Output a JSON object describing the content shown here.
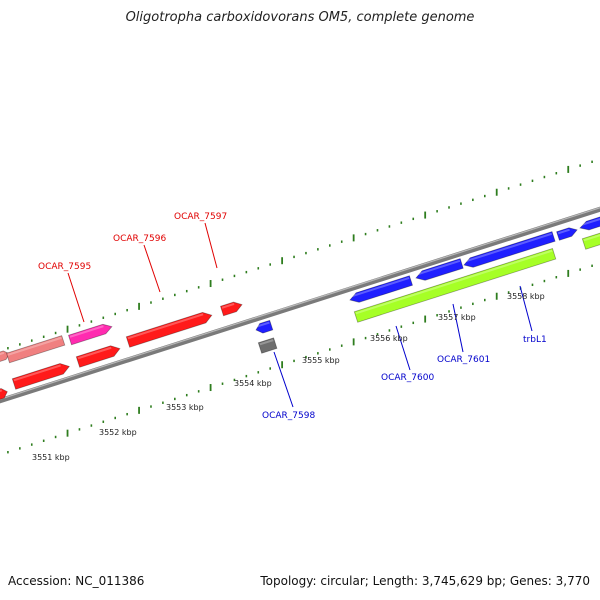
{
  "title": "Oligotropha carboxidovorans OM5, complete genome",
  "footer": {
    "accession": "Accession: NC_011386",
    "summary": "Topology: circular; Length: 3,745,629 bp; Genes: 3,770"
  },
  "colors": {
    "backbone": "#8a8a8a",
    "tick": "#2e7d1e",
    "red_gene": "#ff1a1a",
    "pink_gene": "#ff2bb0",
    "salmon_gene": "#f08080",
    "blue_gene": "#1f1fff",
    "green_gene": "#a6ff26",
    "gray_gene": "#6e6e6e",
    "red_label": "#e00000",
    "blue_label": "#0000cc"
  },
  "scale_labels": [
    {
      "id": "3551",
      "text": "3551 kbp"
    },
    {
      "id": "3552",
      "text": "3552 kbp"
    },
    {
      "id": "3553",
      "text": "3553 kbp"
    },
    {
      "id": "3554",
      "text": "3554 kbp"
    },
    {
      "id": "3555",
      "text": "3555 kbp"
    },
    {
      "id": "3556",
      "text": "3556 kbp"
    },
    {
      "id": "3557",
      "text": "3557 kbp"
    },
    {
      "id": "3558",
      "text": "3558 kbp"
    }
  ],
  "gene_labels": [
    {
      "id": "OCAR_7595",
      "text": "OCAR_7595",
      "color": "red"
    },
    {
      "id": "OCAR_7596",
      "text": "OCAR_7596",
      "color": "red"
    },
    {
      "id": "OCAR_7597",
      "text": "OCAR_7597",
      "color": "red"
    },
    {
      "id": "OCAR_7598",
      "text": "OCAR_7598",
      "color": "blue"
    },
    {
      "id": "OCAR_7600",
      "text": "OCAR_7600",
      "color": "blue"
    },
    {
      "id": "OCAR_7601",
      "text": "OCAR_7601",
      "color": "blue"
    },
    {
      "id": "trbL1",
      "text": "trbL1",
      "color": "blue"
    }
  ]
}
